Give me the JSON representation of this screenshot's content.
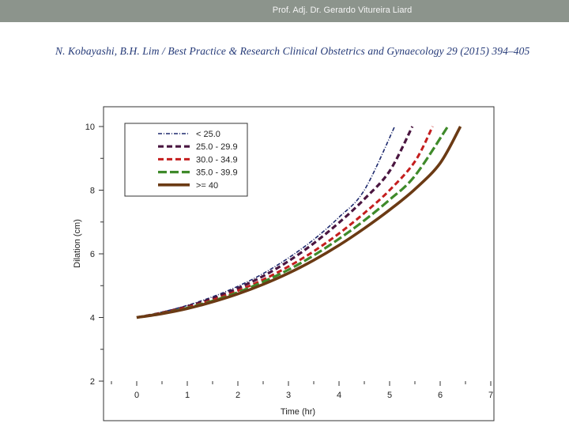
{
  "slide": {
    "header": "Prof. Adj. Dr. Gerardo Vitureira Liard",
    "citation": "N. Kobayashi, B.H. Lim / Best Practice & Research Clinical Obstetrics and Gynaecology 29 (2015) 394–405"
  },
  "chart_data": {
    "type": "line",
    "title": "",
    "xlabel": "Time (hr)",
    "ylabel": "Dilation (cm)",
    "xlim": [
      -0.5,
      7
    ],
    "ylim": [
      2,
      10.4
    ],
    "xticks": [
      0,
      1,
      2,
      3,
      4,
      5,
      6,
      7
    ],
    "yticks": [
      2,
      4,
      6,
      8,
      10
    ],
    "legend_position": "top-left",
    "series": [
      {
        "name": "< 25.0",
        "color": "#1e2a6e",
        "dash": "dashdot",
        "width": 1.6,
        "x": [
          0,
          0.5,
          1,
          1.5,
          2,
          2.5,
          3,
          3.5,
          4,
          4.5,
          5.1
        ],
        "y": [
          4.0,
          4.17,
          4.38,
          4.65,
          4.98,
          5.38,
          5.87,
          6.45,
          7.15,
          8.0,
          10.0
        ]
      },
      {
        "name": "25.0 - 29.9",
        "color": "#4a1640",
        "dash": "dash",
        "width": 3.2,
        "x": [
          0,
          0.5,
          1,
          1.5,
          2,
          2.5,
          3,
          3.5,
          4,
          4.5,
          5,
          5.45
        ],
        "y": [
          4.0,
          4.15,
          4.35,
          4.6,
          4.92,
          5.3,
          5.77,
          6.33,
          6.98,
          7.72,
          8.6,
          10.0
        ]
      },
      {
        "name": "30.0 -  34.9",
        "color": "#c41e1e",
        "dash": "dash",
        "width": 3.0,
        "x": [
          0,
          0.5,
          1,
          1.5,
          2,
          2.5,
          3,
          3.5,
          4,
          4.5,
          5,
          5.5,
          5.85
        ],
        "y": [
          4.0,
          4.14,
          4.32,
          4.55,
          4.84,
          5.19,
          5.6,
          6.08,
          6.64,
          7.28,
          8.0,
          8.9,
          10.0
        ]
      },
      {
        "name": "35.0 - 39.9",
        "color": "#3f8a2a",
        "dash": "longdash",
        "width": 3.2,
        "x": [
          0,
          0.5,
          1,
          1.5,
          2,
          2.5,
          3,
          3.5,
          4,
          4.5,
          5,
          5.5,
          6.15
        ],
        "y": [
          4.0,
          4.13,
          4.3,
          4.52,
          4.79,
          5.12,
          5.5,
          5.95,
          6.47,
          7.05,
          7.7,
          8.45,
          10.0
        ]
      },
      {
        "name": ">= 40",
        "color": "#6b3a14",
        "dash": "solid",
        "width": 3.6,
        "x": [
          0,
          0.5,
          1,
          1.5,
          2,
          2.5,
          3,
          3.5,
          4,
          4.5,
          5,
          5.5,
          6,
          6.4
        ],
        "y": [
          4.0,
          4.12,
          4.28,
          4.49,
          4.74,
          5.04,
          5.39,
          5.8,
          6.27,
          6.8,
          7.38,
          8.03,
          8.85,
          10.0
        ]
      }
    ]
  }
}
